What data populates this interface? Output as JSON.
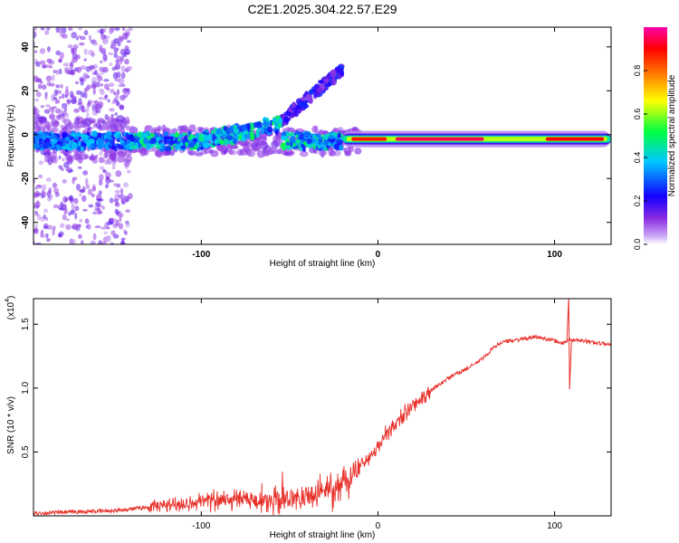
{
  "title": "C2E1.2025.304.22.57.E29",
  "chart_data": [
    {
      "type": "heatmap",
      "xlabel": "Height of straight line (km)",
      "ylabel": "Frequency (Hz)",
      "xlim": [
        -195,
        132
      ],
      "ylim": [
        -50,
        49
      ],
      "xticks": [
        -100,
        0,
        100
      ],
      "yticks": [
        -40,
        -20,
        0,
        20,
        40
      ],
      "colorbar": {
        "label": "Normalized spectral amplitude",
        "range": [
          0,
          1
        ],
        "ticks": [
          "0.0",
          "0.2",
          "0.4",
          "0.6",
          "0.8"
        ],
        "tick_values": [
          0,
          0.2,
          0.4,
          0.6,
          0.8
        ],
        "stops": [
          "#ffffff",
          "#8a2be2",
          "#1400ff",
          "#00c8ff",
          "#00ff40",
          "#ffff00",
          "#ff7f00",
          "#ff0000",
          "#ff00aa"
        ]
      },
      "features": {
        "noise_region_x": [
          -195,
          -140
        ],
        "scatter_band_x": [
          -195,
          -20
        ],
        "main_line": {
          "x_start": -20,
          "x_end": 132,
          "freq": -2,
          "peak_amp": 0.95
        },
        "rising_branch": {
          "x_start": -58,
          "x_end": -20,
          "freq_start": 4,
          "freq_end": 30
        }
      }
    },
    {
      "type": "line",
      "xlabel": "Height of straight line (km)",
      "ylabel": "SNR (10 * v/v)",
      "multiplier_label": "(x10",
      "multiplier_exp": "4",
      "multiplier_close": ")",
      "xlim": [
        -195,
        132
      ],
      "ylim": [
        0,
        1.7
      ],
      "xticks": [
        -100,
        0,
        100
      ],
      "yticks": [
        0.5,
        1.0,
        1.5
      ],
      "ytick_labels": [
        "0.5",
        "1.0",
        "1.5"
      ],
      "color": "#e8302a",
      "series_trend": {
        "x": [
          -195,
          -150,
          -120,
          -90,
          -60,
          -40,
          -20,
          -10,
          0,
          10,
          20,
          30,
          40,
          50,
          55,
          60,
          65,
          70,
          80,
          90,
          100,
          105,
          108,
          115,
          132
        ],
        "y": [
          0.02,
          0.04,
          0.08,
          0.13,
          0.12,
          0.16,
          0.25,
          0.38,
          0.55,
          0.72,
          0.86,
          0.98,
          1.08,
          1.15,
          1.19,
          1.24,
          1.31,
          1.36,
          1.38,
          1.4,
          1.37,
          1.35,
          1.38,
          1.37,
          1.34
        ]
      },
      "spikes": [
        {
          "x": 108,
          "y_top": 1.71,
          "y_bottom": 0.99
        }
      ]
    }
  ]
}
